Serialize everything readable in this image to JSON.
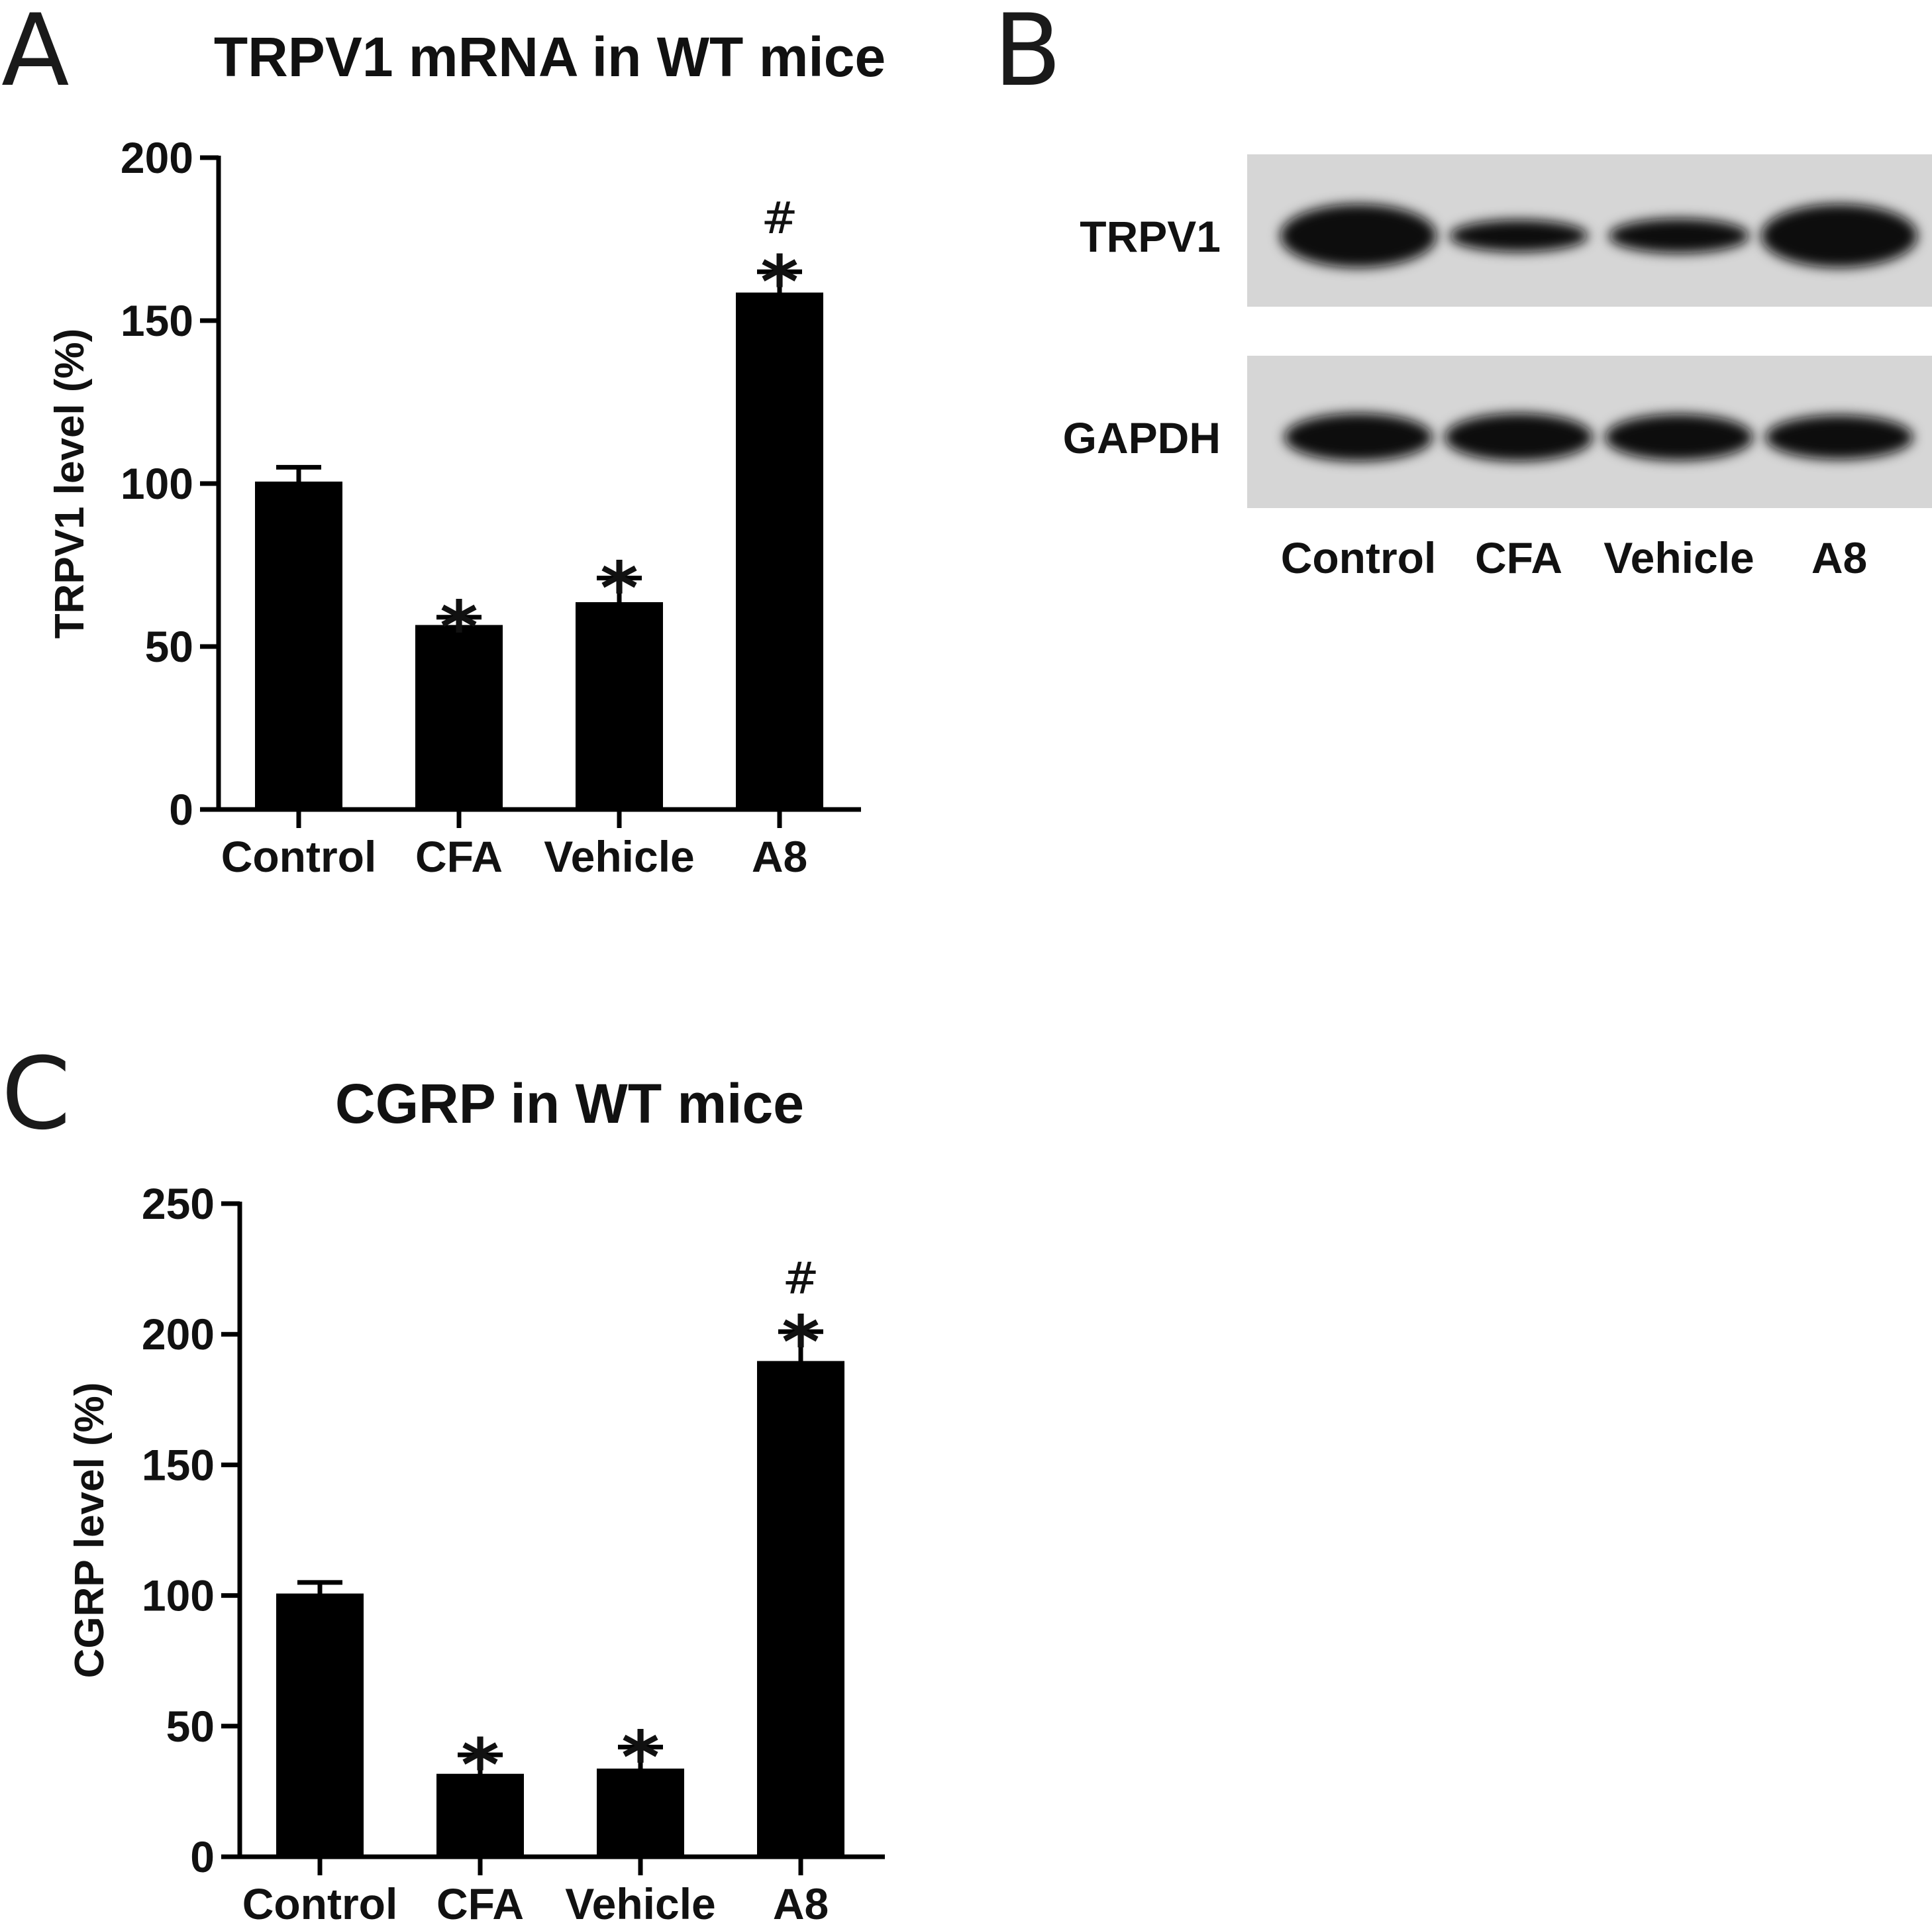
{
  "panels": {
    "a": "A",
    "b": "B",
    "c": "C"
  },
  "chart_data": [
    {
      "type": "bar",
      "panel": "A",
      "title": "TRPV1 mRNA in WT mice",
      "ylabel": "TRPV1 level (%)",
      "xlabel": "",
      "categories": [
        "Control",
        "CFA",
        "Vehicle",
        "A8"
      ],
      "values": [
        100,
        56,
        63,
        158
      ],
      "errors": [
        5,
        3,
        8,
        7
      ],
      "ylim": [
        0,
        200
      ],
      "yticks": [
        0,
        50,
        100,
        150,
        200
      ],
      "annotations": [
        {
          "category": "CFA",
          "marks": [
            "*"
          ]
        },
        {
          "category": "Vehicle",
          "marks": [
            "*"
          ]
        },
        {
          "category": "A8",
          "marks": [
            "*",
            "#"
          ]
        }
      ],
      "bar_color": "#000000"
    },
    {
      "type": "bar",
      "panel": "C",
      "title": "CGRP in WT mice",
      "ylabel": "CGRP level (%)",
      "xlabel": "",
      "categories": [
        "Control",
        "CFA",
        "Vehicle",
        "A8"
      ],
      "values": [
        100,
        31,
        33,
        189
      ],
      "errors": [
        5,
        8,
        9,
        12
      ],
      "ylim": [
        0,
        250
      ],
      "yticks": [
        0,
        50,
        100,
        150,
        200,
        250
      ],
      "annotations": [
        {
          "category": "CFA",
          "marks": [
            "*"
          ]
        },
        {
          "category": "Vehicle",
          "marks": [
            "*"
          ]
        },
        {
          "category": "A8",
          "marks": [
            "*",
            "#"
          ]
        }
      ],
      "bar_color": "#000000"
    }
  ],
  "blot": {
    "rows": [
      {
        "label": "TRPV1",
        "intensity": [
          1.0,
          0.55,
          0.6,
          1.0
        ]
      },
      {
        "label": "GAPDH",
        "intensity": [
          0.95,
          0.95,
          0.92,
          0.88
        ]
      }
    ],
    "lanes": [
      "Control",
      "CFA",
      "Vehicle",
      "A8"
    ],
    "background": "#d6d6d6"
  }
}
